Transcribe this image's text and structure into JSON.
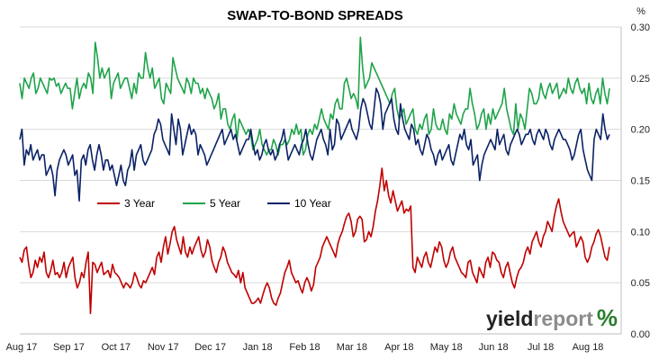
{
  "chart_data": {
    "type": "line",
    "title": "SWAP-TO-BOND SPREADS",
    "y_unit": "%",
    "ylim": [
      0.0,
      0.3
    ],
    "y_ticks": [
      "0.00",
      "0.05",
      "0.10",
      "0.15",
      "0.20",
      "0.25",
      "0.30"
    ],
    "x_ticks": [
      "Aug 17",
      "Sep 17",
      "Oct 17",
      "Nov 17",
      "Dec 17",
      "Jan 18",
      "Feb 18",
      "Mar 18",
      "Apr 18",
      "May 18",
      "Jun 18",
      "Jul 18",
      "Aug 18"
    ],
    "grid": "horizontal",
    "legend_position": "middle-left",
    "colors": {
      "3 Year": "#c00000",
      "5 Year": "#1fa34a",
      "10 Year": "#0b2266"
    },
    "series": [
      {
        "name": "3 Year",
        "values": [
          0.075,
          0.07,
          0.082,
          0.085,
          0.068,
          0.055,
          0.06,
          0.072,
          0.065,
          0.075,
          0.07,
          0.08,
          0.06,
          0.055,
          0.062,
          0.072,
          0.058,
          0.06,
          0.055,
          0.06,
          0.07,
          0.055,
          0.065,
          0.07,
          0.075,
          0.055,
          0.045,
          0.05,
          0.06,
          0.055,
          0.07,
          0.08,
          0.02,
          0.07,
          0.068,
          0.06,
          0.065,
          0.07,
          0.058,
          0.06,
          0.062,
          0.055,
          0.068,
          0.06,
          0.058,
          0.055,
          0.05,
          0.045,
          0.05,
          0.048,
          0.045,
          0.05,
          0.06,
          0.055,
          0.048,
          0.045,
          0.052,
          0.05,
          0.055,
          0.06,
          0.065,
          0.058,
          0.075,
          0.08,
          0.07,
          0.085,
          0.095,
          0.078,
          0.088,
          0.1,
          0.105,
          0.092,
          0.085,
          0.078,
          0.095,
          0.08,
          0.075,
          0.085,
          0.078,
          0.085,
          0.09,
          0.095,
          0.082,
          0.075,
          0.08,
          0.092,
          0.085,
          0.072,
          0.065,
          0.06,
          0.07,
          0.075,
          0.085,
          0.08,
          0.07,
          0.065,
          0.06,
          0.058,
          0.055,
          0.062,
          0.05,
          0.06,
          0.045,
          0.04,
          0.035,
          0.03,
          0.03,
          0.032,
          0.035,
          0.03,
          0.038,
          0.045,
          0.05,
          0.045,
          0.035,
          0.03,
          0.028,
          0.035,
          0.04,
          0.05,
          0.06,
          0.065,
          0.072,
          0.06,
          0.055,
          0.05,
          0.052,
          0.045,
          0.04,
          0.05,
          0.055,
          0.05,
          0.042,
          0.048,
          0.065,
          0.07,
          0.075,
          0.085,
          0.09,
          0.095,
          0.09,
          0.085,
          0.08,
          0.075,
          0.088,
          0.095,
          0.1,
          0.108,
          0.115,
          0.118,
          0.11,
          0.095,
          0.1,
          0.112,
          0.115,
          0.112,
          0.09,
          0.092,
          0.1,
          0.095,
          0.105,
          0.12,
          0.13,
          0.145,
          0.162,
          0.14,
          0.15,
          0.135,
          0.128,
          0.14,
          0.13,
          0.12,
          0.125,
          0.13,
          0.118,
          0.122,
          0.12,
          0.125,
          0.065,
          0.06,
          0.075,
          0.07,
          0.065,
          0.075,
          0.08,
          0.07,
          0.065,
          0.075,
          0.085,
          0.08,
          0.09,
          0.085,
          0.072,
          0.065,
          0.07,
          0.08,
          0.085,
          0.075,
          0.07,
          0.065,
          0.06,
          0.058,
          0.055,
          0.07,
          0.072,
          0.06,
          0.055,
          0.05,
          0.065,
          0.06,
          0.055,
          0.07,
          0.075,
          0.065,
          0.08,
          0.078,
          0.072,
          0.07,
          0.06,
          0.055,
          0.065,
          0.07,
          0.06,
          0.05,
          0.045,
          0.055,
          0.062,
          0.065,
          0.07,
          0.08,
          0.085,
          0.078,
          0.09,
          0.095,
          0.1,
          0.09,
          0.085,
          0.095,
          0.1,
          0.11,
          0.105,
          0.1,
          0.115,
          0.125,
          0.132,
          0.12,
          0.11,
          0.105,
          0.1,
          0.095,
          0.098,
          0.1,
          0.085,
          0.09,
          0.095,
          0.09,
          0.075,
          0.07,
          0.075,
          0.085,
          0.09,
          0.098,
          0.102,
          0.095,
          0.085,
          0.075,
          0.072,
          0.085
        ]
      },
      {
        "name": "5 Year",
        "values": [
          0.245,
          0.23,
          0.25,
          0.245,
          0.24,
          0.25,
          0.255,
          0.235,
          0.24,
          0.25,
          0.245,
          0.24,
          0.235,
          0.25,
          0.248,
          0.25,
          0.242,
          0.245,
          0.235,
          0.24,
          0.245,
          0.24,
          0.24,
          0.22,
          0.235,
          0.25,
          0.23,
          0.24,
          0.245,
          0.24,
          0.255,
          0.25,
          0.235,
          0.285,
          0.27,
          0.25,
          0.26,
          0.25,
          0.255,
          0.26,
          0.23,
          0.245,
          0.25,
          0.255,
          0.24,
          0.245,
          0.25,
          0.25,
          0.24,
          0.23,
          0.245,
          0.235,
          0.255,
          0.25,
          0.25,
          0.275,
          0.26,
          0.25,
          0.26,
          0.24,
          0.245,
          0.25,
          0.23,
          0.225,
          0.245,
          0.24,
          0.235,
          0.27,
          0.26,
          0.25,
          0.245,
          0.24,
          0.235,
          0.25,
          0.245,
          0.235,
          0.25,
          0.245,
          0.245,
          0.235,
          0.24,
          0.23,
          0.24,
          0.235,
          0.23,
          0.22,
          0.225,
          0.235,
          0.21,
          0.22,
          0.22,
          0.205,
          0.2,
          0.21,
          0.215,
          0.19,
          0.21,
          0.205,
          0.2,
          0.195,
          0.2,
          0.195,
          0.18,
          0.185,
          0.19,
          0.2,
          0.185,
          0.18,
          0.175,
          0.18,
          0.18,
          0.19,
          0.185,
          0.175,
          0.185,
          0.185,
          0.19,
          0.185,
          0.19,
          0.2,
          0.195,
          0.205,
          0.195,
          0.2,
          0.175,
          0.18,
          0.195,
          0.2,
          0.195,
          0.205,
          0.2,
          0.21,
          0.22,
          0.21,
          0.205,
          0.2,
          0.215,
          0.21,
          0.225,
          0.23,
          0.22,
          0.22,
          0.245,
          0.25,
          0.24,
          0.23,
          0.235,
          0.23,
          0.22,
          0.29,
          0.26,
          0.24,
          0.245,
          0.25,
          0.265,
          0.26,
          0.255,
          0.25,
          0.245,
          0.24,
          0.235,
          0.23,
          0.225,
          0.235,
          0.24,
          0.22,
          0.21,
          0.215,
          0.22,
          0.205,
          0.21,
          0.215,
          0.22,
          0.2,
          0.195,
          0.205,
          0.2,
          0.21,
          0.215,
          0.195,
          0.2,
          0.22,
          0.205,
          0.2,
          0.2,
          0.21,
          0.2,
          0.195,
          0.215,
          0.21,
          0.225,
          0.215,
          0.21,
          0.205,
          0.215,
          0.22,
          0.22,
          0.24,
          0.225,
          0.215,
          0.2,
          0.205,
          0.215,
          0.22,
          0.2,
          0.215,
          0.205,
          0.22,
          0.21,
          0.215,
          0.22,
          0.225,
          0.24,
          0.22,
          0.21,
          0.2,
          0.195,
          0.225,
          0.2,
          0.215,
          0.21,
          0.2,
          0.22,
          0.24,
          0.235,
          0.225,
          0.225,
          0.23,
          0.245,
          0.235,
          0.23,
          0.24,
          0.245,
          0.235,
          0.24,
          0.245,
          0.23,
          0.235,
          0.24,
          0.235,
          0.25,
          0.24,
          0.235,
          0.245,
          0.25,
          0.24,
          0.235,
          0.24,
          0.225,
          0.245,
          0.23,
          0.225,
          0.235,
          0.24,
          0.225,
          0.25,
          0.235,
          0.225,
          0.24
        ]
      },
      {
        "name": "10 Year",
        "values": [
          0.19,
          0.2,
          0.165,
          0.18,
          0.175,
          0.185,
          0.17,
          0.175,
          0.18,
          0.17,
          0.175,
          0.175,
          0.155,
          0.16,
          0.165,
          0.155,
          0.135,
          0.16,
          0.17,
          0.175,
          0.18,
          0.175,
          0.165,
          0.17,
          0.175,
          0.155,
          0.16,
          0.13,
          0.17,
          0.175,
          0.165,
          0.18,
          0.185,
          0.17,
          0.16,
          0.175,
          0.185,
          0.175,
          0.16,
          0.17,
          0.17,
          0.16,
          0.165,
          0.155,
          0.145,
          0.155,
          0.165,
          0.15,
          0.145,
          0.16,
          0.165,
          0.18,
          0.16,
          0.175,
          0.18,
          0.185,
          0.17,
          0.165,
          0.17,
          0.175,
          0.18,
          0.195,
          0.2,
          0.21,
          0.205,
          0.19,
          0.185,
          0.18,
          0.175,
          0.215,
          0.2,
          0.185,
          0.21,
          0.2,
          0.175,
          0.185,
          0.195,
          0.205,
          0.195,
          0.2,
          0.195,
          0.175,
          0.185,
          0.18,
          0.175,
          0.165,
          0.17,
          0.175,
          0.18,
          0.185,
          0.19,
          0.195,
          0.2,
          0.185,
          0.19,
          0.195,
          0.2,
          0.19,
          0.195,
          0.185,
          0.175,
          0.18,
          0.185,
          0.19,
          0.19,
          0.2,
          0.185,
          0.175,
          0.18,
          0.17,
          0.175,
          0.185,
          0.19,
          0.18,
          0.175,
          0.18,
          0.17,
          0.175,
          0.185,
          0.19,
          0.2,
          0.185,
          0.17,
          0.175,
          0.18,
          0.185,
          0.18,
          0.175,
          0.185,
          0.19,
          0.2,
          0.185,
          0.175,
          0.17,
          0.18,
          0.19,
          0.195,
          0.2,
          0.19,
          0.185,
          0.175,
          0.2,
          0.18,
          0.185,
          0.21,
          0.205,
          0.19,
          0.195,
          0.2,
          0.205,
          0.21,
          0.2,
          0.195,
          0.19,
          0.2,
          0.22,
          0.23,
          0.225,
          0.215,
          0.205,
          0.2,
          0.22,
          0.24,
          0.235,
          0.225,
          0.2,
          0.215,
          0.22,
          0.225,
          0.23,
          0.21,
          0.2,
          0.195,
          0.225,
          0.21,
          0.2,
          0.195,
          0.19,
          0.205,
          0.2,
          0.185,
          0.19,
          0.18,
          0.175,
          0.185,
          0.195,
          0.19,
          0.18,
          0.175,
          0.165,
          0.175,
          0.18,
          0.17,
          0.175,
          0.18,
          0.185,
          0.17,
          0.165,
          0.175,
          0.185,
          0.195,
          0.19,
          0.2,
          0.185,
          0.18,
          0.19,
          0.165,
          0.17,
          0.175,
          0.15,
          0.165,
          0.175,
          0.18,
          0.185,
          0.19,
          0.185,
          0.18,
          0.2,
          0.185,
          0.19,
          0.195,
          0.18,
          0.175,
          0.185,
          0.19,
          0.195,
          0.2,
          0.195,
          0.185,
          0.19,
          0.195,
          0.195,
          0.2,
          0.19,
          0.185,
          0.195,
          0.2,
          0.195,
          0.19,
          0.2,
          0.195,
          0.185,
          0.18,
          0.19,
          0.195,
          0.2,
          0.195,
          0.19,
          0.19,
          0.185,
          0.18,
          0.17,
          0.175,
          0.185,
          0.195,
          0.2,
          0.18,
          0.17,
          0.16,
          0.155,
          0.15,
          0.19,
          0.2,
          0.195,
          0.19,
          0.215,
          0.2,
          0.19,
          0.195
        ]
      }
    ]
  },
  "logo": {
    "main": "yield",
    "sub": "report",
    "pct": "%"
  }
}
